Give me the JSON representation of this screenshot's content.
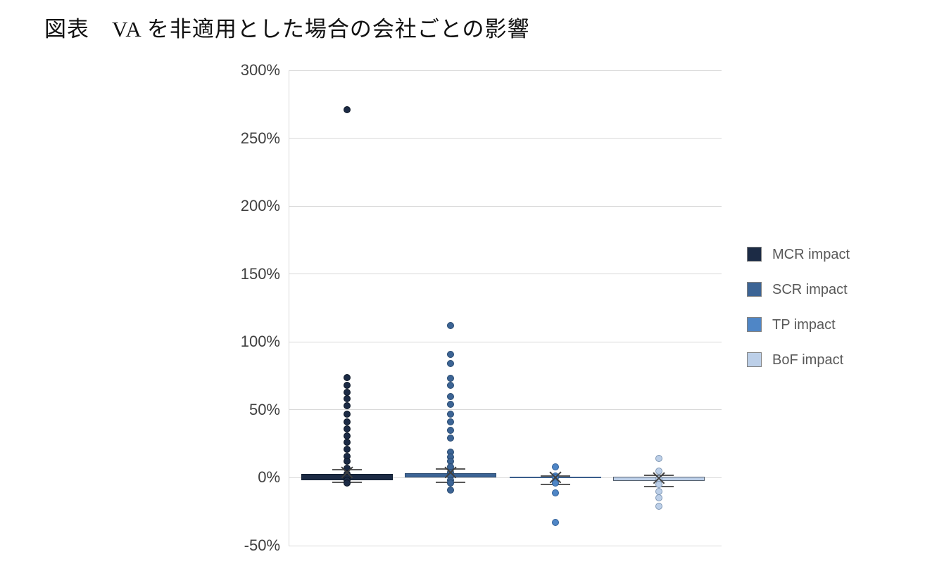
{
  "title": "図表　VA を非適用とした場合の会社ごとの影響",
  "chart_data": {
    "type": "box-whisker-scatter",
    "title": "図表　VA を非適用とした場合の会社ごとの影響",
    "xlabel": "",
    "ylabel": "",
    "ylim": [
      -50,
      300
    ],
    "ytick_step": 50,
    "yticks": [
      "300%",
      "250%",
      "200%",
      "150%",
      "100%",
      "50%",
      "0%",
      "-50%"
    ],
    "grid": "horizontal",
    "gridline_color": "#d9d9d9",
    "axis_label_color": "#404040",
    "legend_position": "right",
    "series": [
      {
        "name": "MCR impact",
        "color": "#1c2b45",
        "border_color": "#0d1726",
        "box_border_color": "#101d30",
        "dots": [
          271,
          74,
          68,
          63,
          58,
          53,
          47,
          41,
          36,
          31,
          26,
          21,
          16,
          12,
          7,
          3,
          0,
          -2,
          -4
        ],
        "box_top": 3,
        "box_bottom": -2,
        "whisker_upper": 6,
        "whisker_lower": -3.5,
        "mean": 4
      },
      {
        "name": "SCR impact",
        "color": "#3c6495",
        "border_color": "#27496f",
        "box_border_color": "#2a4a70",
        "dots": [
          112,
          91,
          84,
          73,
          68,
          60,
          54,
          47,
          41,
          35,
          29,
          19,
          15,
          12,
          8,
          4,
          1,
          -2,
          -4,
          -9
        ],
        "box_top": 3.5,
        "box_bottom": 0,
        "whisker_upper": 6.5,
        "whisker_lower": -3.5,
        "mean": 4
      },
      {
        "name": "TP impact",
        "color": "#4f86c6",
        "border_color": "#2f5e97",
        "box_border_color": "#3a5e8c",
        "dots": [
          8,
          1,
          0,
          -4,
          -11,
          -33
        ],
        "box_top": 0.5,
        "box_bottom": -0.5,
        "whisker_upper": 1.5,
        "whisker_lower": -5,
        "mean": 0
      },
      {
        "name": "BoF impact",
        "color": "#bccfe8",
        "border_color": "#7f97b4",
        "box_border_color": "#55606e",
        "dots": [
          14,
          5,
          -1,
          -5,
          -10,
          -15,
          -21
        ],
        "box_top": 0.5,
        "box_bottom": -2.5,
        "whisker_upper": 2,
        "whisker_lower": -6.5,
        "mean": -0.5
      }
    ]
  }
}
